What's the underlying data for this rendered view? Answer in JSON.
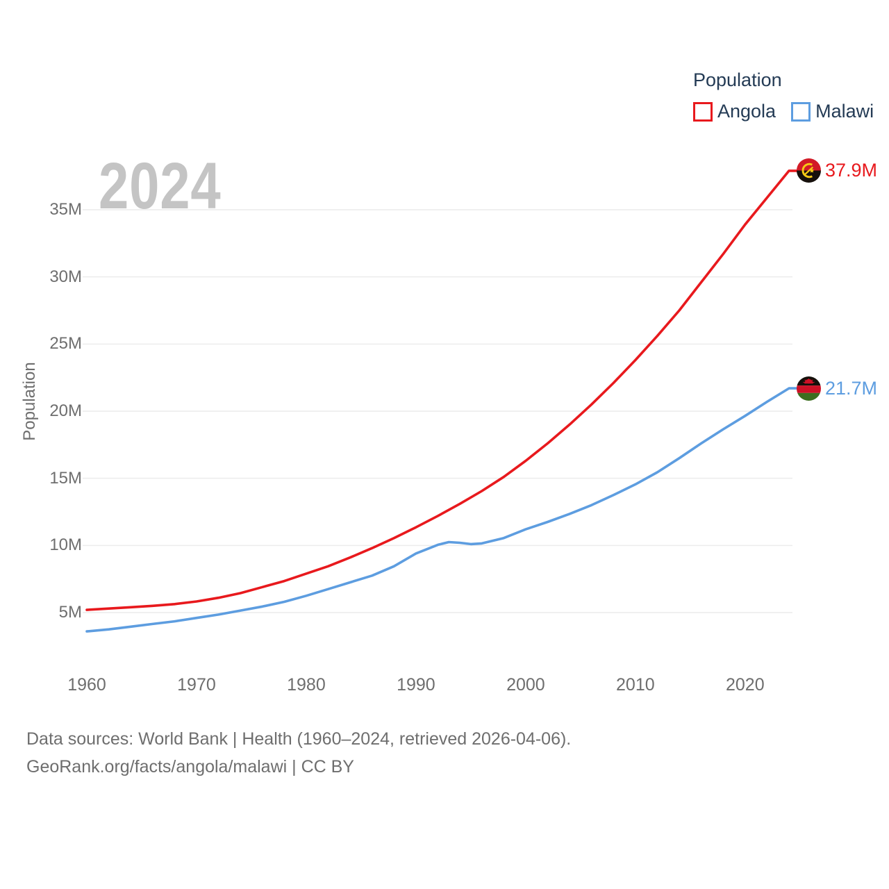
{
  "legend": {
    "title": "Population",
    "items": [
      {
        "label": "Angola",
        "color": "#e8191d"
      },
      {
        "label": "Malawi",
        "color": "#5d9de0"
      }
    ]
  },
  "watermark_year": "2024",
  "axes": {
    "y_title": "Population"
  },
  "footer": {
    "line1": "Data sources: World Bank | Health (1960–2024, retrieved 2026-04-06).",
    "line2": "GeoRank.org/facts/angola/malawi | CC BY"
  },
  "chart_data": {
    "type": "line",
    "title": "Population",
    "xlabel": "",
    "ylabel": "Population",
    "watermark": "2024",
    "grid": "horizontal",
    "legend_position": "top-right",
    "xlim": [
      1960,
      2024
    ],
    "ylim": [
      2.5,
      38.5
    ],
    "xticks": [
      1960,
      1970,
      1980,
      1990,
      2000,
      2010,
      2020
    ],
    "yticks": [
      {
        "value": 5,
        "label": "5M"
      },
      {
        "value": 10,
        "label": "10M"
      },
      {
        "value": 15,
        "label": "15M"
      },
      {
        "value": 20,
        "label": "20M"
      },
      {
        "value": 25,
        "label": "25M"
      },
      {
        "value": 30,
        "label": "30M"
      },
      {
        "value": 35,
        "label": "35M"
      }
    ],
    "series": [
      {
        "name": "Angola",
        "color": "#e8191d",
        "end_label": "37.9M",
        "end_value": 37.9,
        "flag": "angola",
        "x": [
          1960,
          1962,
          1964,
          1966,
          1968,
          1970,
          1972,
          1974,
          1976,
          1978,
          1980,
          1982,
          1984,
          1986,
          1988,
          1990,
          1992,
          1994,
          1996,
          1998,
          2000,
          2002,
          2004,
          2006,
          2008,
          2010,
          2012,
          2014,
          2016,
          2018,
          2020,
          2022,
          2024
        ],
        "values": [
          5.2,
          5.3,
          5.4,
          5.5,
          5.63,
          5.83,
          6.1,
          6.45,
          6.9,
          7.35,
          7.9,
          8.45,
          9.1,
          9.8,
          10.55,
          11.35,
          12.2,
          13.1,
          14.05,
          15.1,
          16.3,
          17.6,
          19.0,
          20.5,
          22.1,
          23.8,
          25.6,
          27.5,
          29.6,
          31.7,
          33.9,
          35.9,
          37.9
        ]
      },
      {
        "name": "Malawi",
        "color": "#5d9de0",
        "end_label": "21.7M",
        "end_value": 21.7,
        "flag": "malawi",
        "x": [
          1960,
          1962,
          1964,
          1966,
          1968,
          1970,
          1972,
          1974,
          1976,
          1978,
          1980,
          1982,
          1984,
          1986,
          1988,
          1990,
          1992,
          1993,
          1994,
          1995,
          1996,
          1998,
          2000,
          2002,
          2004,
          2006,
          2008,
          2010,
          2012,
          2014,
          2016,
          2018,
          2020,
          2022,
          2024
        ],
        "values": [
          3.6,
          3.75,
          3.95,
          4.15,
          4.35,
          4.6,
          4.85,
          5.15,
          5.45,
          5.8,
          6.25,
          6.75,
          7.25,
          7.75,
          8.45,
          9.4,
          10.05,
          10.25,
          10.2,
          10.1,
          10.15,
          10.55,
          11.2,
          11.75,
          12.35,
          13.0,
          13.75,
          14.55,
          15.45,
          16.5,
          17.6,
          18.65,
          19.65,
          20.7,
          21.7
        ]
      }
    ]
  }
}
